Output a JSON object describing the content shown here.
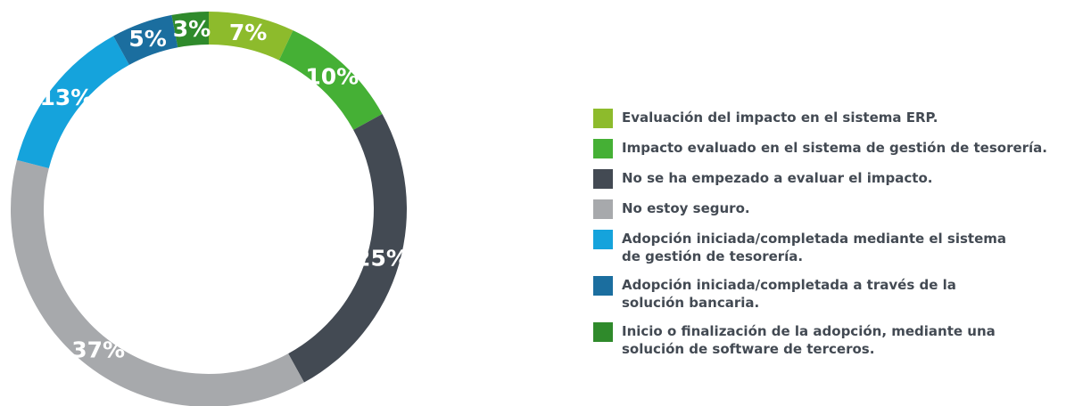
{
  "chart_data": {
    "type": "pie",
    "donut": true,
    "categories": [
      "Evaluación del impacto en el sistema ERP.",
      "Impacto evaluado en el sistema de gestión de tesorería.",
      "No se ha empezado a evaluar el impacto.",
      "No estoy seguro.",
      "Adopción iniciada/completada mediante el sistema\nde gestión de tesorería.",
      "Adopción iniciada/completada a través de la\nsolución bancaria.",
      "Inicio o finalización de la adopción, mediante una\nsolución de software de terceros."
    ],
    "values": [
      7,
      10,
      25,
      37,
      13,
      5,
      3
    ],
    "value_labels": [
      "7%",
      "10%",
      "25%",
      "37%",
      "13%",
      "5%",
      "3%"
    ],
    "colors": [
      "#8dbb2c",
      "#45b035",
      "#434a53",
      "#a7a9ac",
      "#15a3dc",
      "#1b6e9f",
      "#2f8a2b"
    ]
  }
}
